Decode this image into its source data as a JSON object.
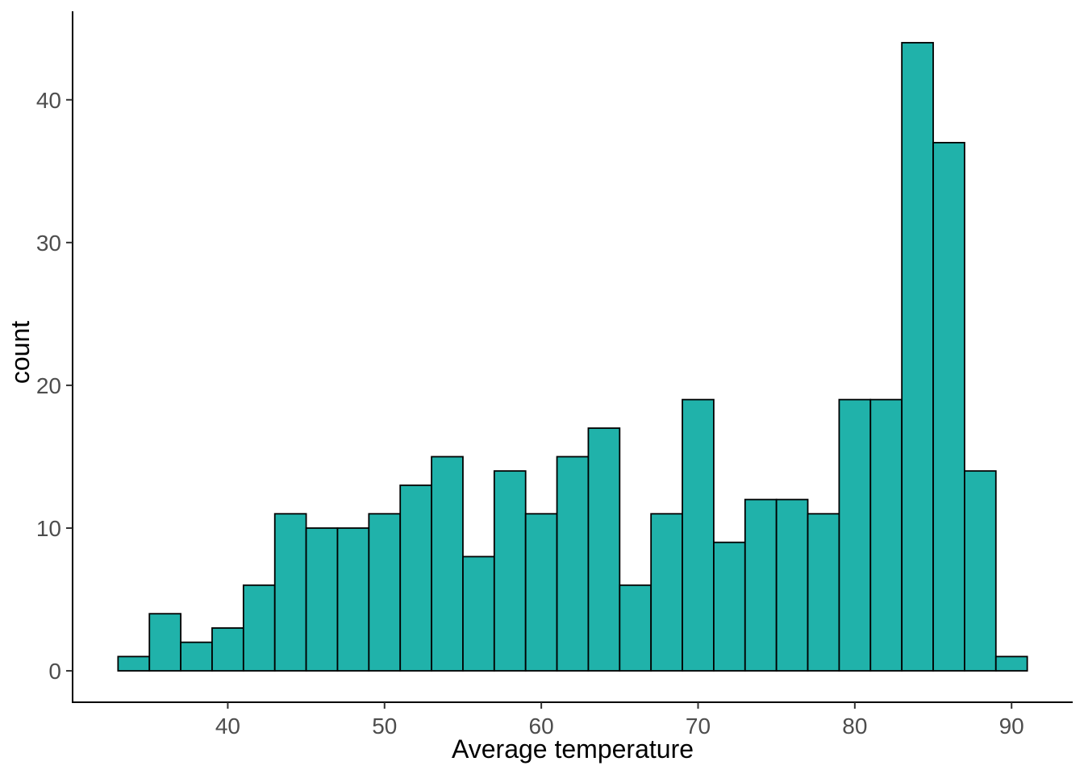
{
  "figure": {
    "background": "#FFFFFF"
  },
  "chart_data": {
    "type": "bar",
    "variant": "histogram",
    "title": "",
    "xlabel": "Average temperature",
    "ylabel": "count",
    "bin_start": 33,
    "binwidth": 2,
    "bin_centers": [
      34,
      36,
      38,
      40,
      42,
      44,
      46,
      48,
      50,
      52,
      54,
      56,
      58,
      60,
      62,
      64,
      66,
      68,
      70,
      72,
      74,
      76,
      78,
      80,
      82,
      84,
      86,
      88,
      90
    ],
    "counts": [
      1,
      4,
      2,
      3,
      6,
      11,
      10,
      10,
      11,
      13,
      15,
      8,
      14,
      11,
      15,
      17,
      6,
      11,
      19,
      9,
      12,
      12,
      11,
      19,
      19,
      44,
      37,
      14,
      1
    ],
    "x_ticks": [
      40,
      50,
      60,
      70,
      80,
      90
    ],
    "y_ticks": [
      0,
      10,
      20,
      30,
      40
    ],
    "xlim": [
      30.1,
      93.9
    ],
    "ylim": [
      -2.2,
      46.2
    ],
    "grid": false,
    "legend": "none",
    "colors": {
      "bar_fill": "#20B2AA",
      "bar_stroke": "#000000",
      "axis_line": "#000000",
      "tick_mark": "#333333",
      "tick_label": "#4D4D4D",
      "axis_title": "#000000"
    }
  }
}
